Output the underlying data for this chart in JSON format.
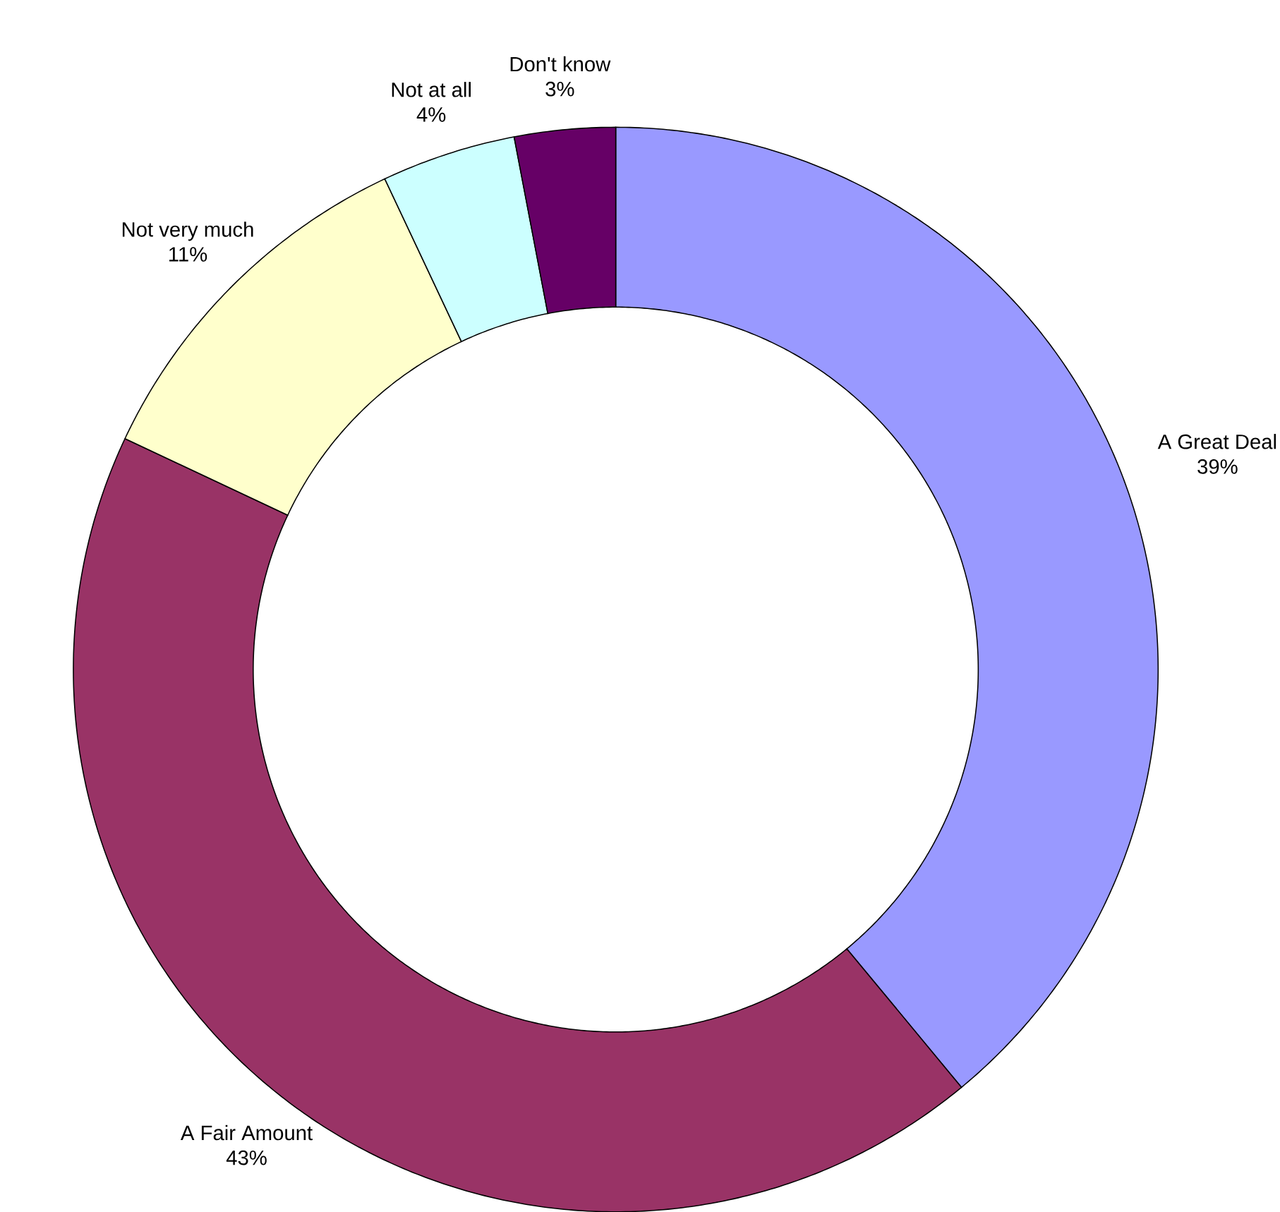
{
  "chart_data": {
    "type": "donut",
    "categories": [
      "A Great Deal",
      "A Fair Amount",
      "Not very much",
      "Not at all",
      "Don't know"
    ],
    "values": [
      39,
      43,
      11,
      4,
      3
    ],
    "value_labels": [
      "39%",
      "43%",
      "11%",
      "4%",
      "3%"
    ],
    "colors": [
      "#9999ff",
      "#993366",
      "#ffffcc",
      "#ccffff",
      "#660066"
    ]
  }
}
